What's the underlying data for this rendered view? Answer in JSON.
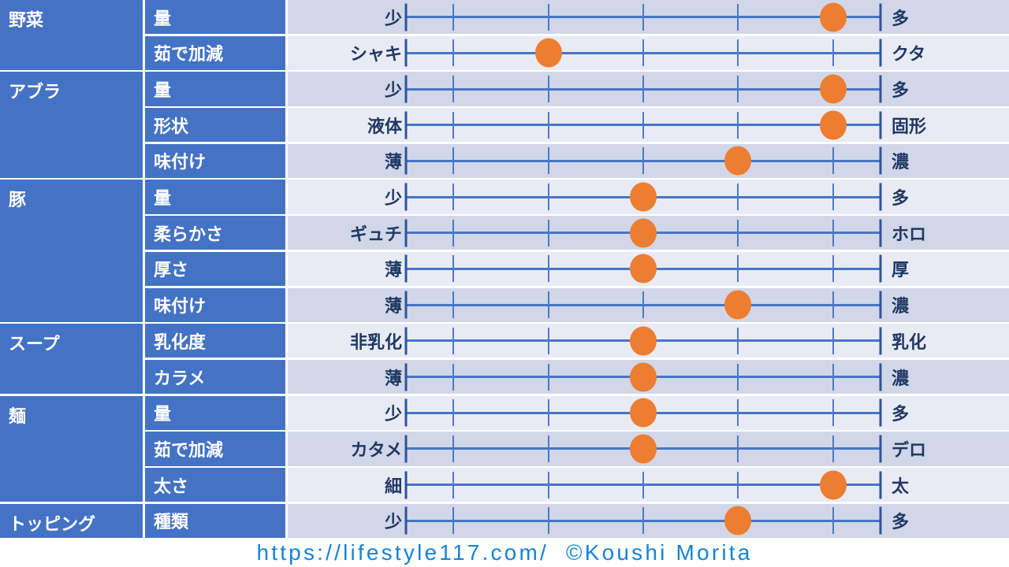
{
  "chart_data": {
    "type": "table",
    "title": "ramen-style-rating-chart",
    "scale": {
      "tick_percents": [
        10,
        30,
        50,
        70,
        90
      ],
      "marker_color": "#ED7D31"
    },
    "groups": [
      {
        "category": "野菜",
        "rows": [
          {
            "attr": "量",
            "left": "少",
            "right": "多",
            "percent": 90
          },
          {
            "attr": "茹で加減",
            "left": "シャキ",
            "right": "クタ",
            "percent": 30
          }
        ]
      },
      {
        "category": "アブラ",
        "rows": [
          {
            "attr": "量",
            "left": "少",
            "right": "多",
            "percent": 90
          },
          {
            "attr": "形状",
            "left": "液体",
            "right": "固形",
            "percent": 90
          },
          {
            "attr": "味付け",
            "left": "薄",
            "right": "濃",
            "percent": 70
          }
        ]
      },
      {
        "category": "豚",
        "rows": [
          {
            "attr": "量",
            "left": "少",
            "right": "多",
            "percent": 50
          },
          {
            "attr": "柔らかさ",
            "left": "ギュチ",
            "right": "ホロ",
            "percent": 50
          },
          {
            "attr": "厚さ",
            "left": "薄",
            "right": "厚",
            "percent": 50
          },
          {
            "attr": "味付け",
            "left": "薄",
            "right": "濃",
            "percent": 70
          }
        ]
      },
      {
        "category": "スープ",
        "rows": [
          {
            "attr": "乳化度",
            "left": "非乳化",
            "right": "乳化",
            "percent": 50
          },
          {
            "attr": "カラメ",
            "left": "薄",
            "right": "濃",
            "percent": 50
          }
        ]
      },
      {
        "category": "麺",
        "rows": [
          {
            "attr": "量",
            "left": "少",
            "right": "多",
            "percent": 50
          },
          {
            "attr": "茹で加減",
            "left": "カタメ",
            "right": "デロ",
            "percent": 50
          },
          {
            "attr": "太さ",
            "left": "細",
            "right": "太",
            "percent": 90
          }
        ]
      },
      {
        "category": "トッピング",
        "rows": [
          {
            "attr": "種類",
            "left": "少",
            "right": "多",
            "percent": 70
          }
        ]
      }
    ]
  },
  "footer": {
    "text": "https://lifestyle117.com/  ©Koushi Morita"
  },
  "colors": {
    "header_blue": "#4472C4",
    "row_dark": "#D1D7E8",
    "row_light": "#E9EBF4",
    "line_blue": "#4775C5",
    "end_tick_blue": "#2F5597",
    "dot_orange": "#ED7D31",
    "label_navy": "#1F3864",
    "footer_blue": "#1583D6"
  }
}
